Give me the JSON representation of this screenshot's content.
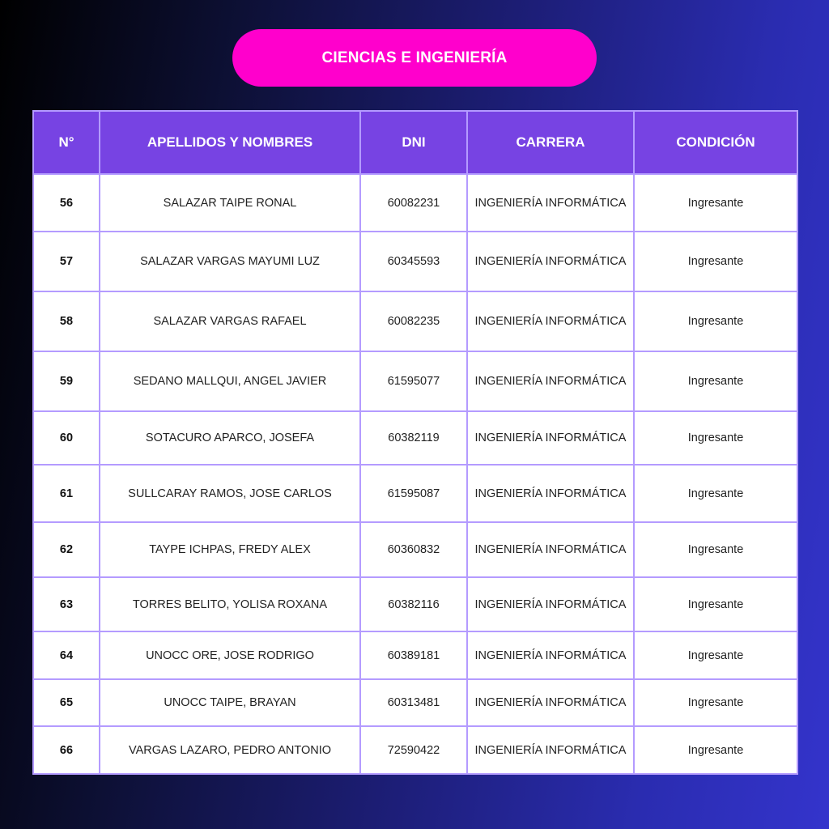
{
  "title": "CIENCIAS E INGENIERÍA",
  "table": {
    "headers": [
      "N°",
      "APELLIDOS Y NOMBRES",
      "DNI",
      "CARRERA",
      "CONDICIÓN"
    ],
    "rows": [
      {
        "n": "56",
        "name": "SALAZAR TAIPE RONAL",
        "dni": "60082231",
        "carrera": "INGENIERÍA INFORMÁTICA",
        "condicion": "Ingresante"
      },
      {
        "n": "57",
        "name": "SALAZAR VARGAS MAYUMI LUZ",
        "dni": "60345593",
        "carrera": "INGENIERÍA INFORMÁTICA",
        "condicion": "Ingresante"
      },
      {
        "n": "58",
        "name": "SALAZAR VARGAS RAFAEL",
        "dni": "60082235",
        "carrera": "INGENIERÍA INFORMÁTICA",
        "condicion": "Ingresante"
      },
      {
        "n": "59",
        "name": "SEDANO MALLQUI, ANGEL JAVIER",
        "dni": "61595077",
        "carrera": "INGENIERÍA INFORMÁTICA",
        "condicion": "Ingresante"
      },
      {
        "n": "60",
        "name": "SOTACURO APARCO, JOSEFA",
        "dni": "60382119",
        "carrera": "INGENIERÍA INFORMÁTICA",
        "condicion": "Ingresante"
      },
      {
        "n": "61",
        "name": "SULLCARAY RAMOS, JOSE CARLOS",
        "dni": "61595087",
        "carrera": "INGENIERÍA INFORMÁTICA",
        "condicion": "Ingresante"
      },
      {
        "n": "62",
        "name": "TAYPE ICHPAS, FREDY ALEX",
        "dni": "60360832",
        "carrera": "INGENIERÍA INFORMÁTICA",
        "condicion": "Ingresante"
      },
      {
        "n": "63",
        "name": "TORRES BELITO, YOLISA ROXANA",
        "dni": "60382116",
        "carrera": "INGENIERÍA INFORMÁTICA",
        "condicion": "Ingresante"
      },
      {
        "n": "64",
        "name": "UNOCC ORE, JOSE RODRIGO",
        "dni": "60389181",
        "carrera": "INGENIERÍA INFORMÁTICA",
        "condicion": "Ingresante"
      },
      {
        "n": "65",
        "name": "UNOCC TAIPE, BRAYAN",
        "dni": "60313481",
        "carrera": "INGENIERÍA INFORMÁTICA",
        "condicion": "Ingresante"
      },
      {
        "n": "66",
        "name": "VARGAS LAZARO, PEDRO ANTONIO",
        "dni": "72590422",
        "carrera": "INGENIERÍA INFORMÁTICA",
        "condicion": "Ingresante"
      }
    ]
  },
  "colors": {
    "pill": "#ff00cc",
    "header": "#7743e3",
    "border": "#b49bff"
  }
}
